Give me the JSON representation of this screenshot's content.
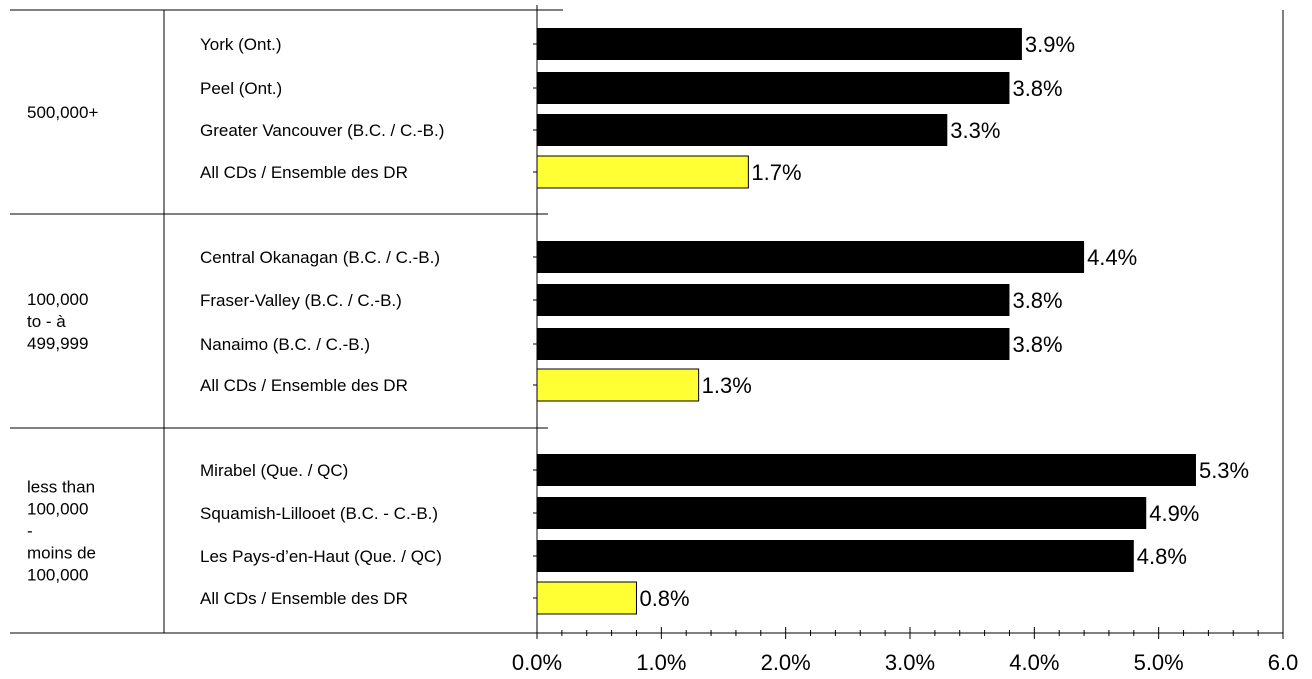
{
  "chart_data": {
    "type": "bar",
    "orientation": "horizontal",
    "xlim": [
      0,
      6
    ],
    "x_ticks": [
      "0.0%",
      "1.0%",
      "2.0%",
      "3.0%",
      "4.0%",
      "5.0%",
      "6.0"
    ],
    "value_unit": "%",
    "groups": [
      {
        "label": [
          "500,000+"
        ],
        "items": [
          {
            "name": "York (Ont.)",
            "value": 3.9,
            "value_label": "3.9%",
            "highlight": false
          },
          {
            "name": "Peel (Ont.)",
            "value": 3.8,
            "value_label": "3.8%",
            "highlight": false
          },
          {
            "name": "Greater Vancouver (B.C. / C.-B.)",
            "value": 3.3,
            "value_label": "3.3%",
            "highlight": false
          },
          {
            "name": "All CDs / Ensemble des DR",
            "value": 1.7,
            "value_label": "1.7%",
            "highlight": true
          }
        ]
      },
      {
        "label": [
          "100,000",
          "to - à",
          "499,999"
        ],
        "items": [
          {
            "name": "Central Okanagan (B.C. / C.-B.)",
            "value": 4.4,
            "value_label": "4.4%",
            "highlight": false
          },
          {
            "name": "Fraser-Valley (B.C. / C.-B.)",
            "value": 3.8,
            "value_label": "3.8%",
            "highlight": false
          },
          {
            "name": "Nanaimo (B.C. / C.-B.)",
            "value": 3.8,
            "value_label": "3.8%",
            "highlight": false
          },
          {
            "name": "All CDs / Ensemble des DR",
            "value": 1.3,
            "value_label": "1.3%",
            "highlight": true
          }
        ]
      },
      {
        "label": [
          "less than",
          "100,000",
          "-",
          "moins de",
          "100,000"
        ],
        "items": [
          {
            "name": "Mirabel (Que. / QC)",
            "value": 5.3,
            "value_label": "5.3%",
            "highlight": false
          },
          {
            "name": "Squamish-Lillooet (B.C. - C.-B.)",
            "value": 4.9,
            "value_label": "4.9%",
            "highlight": false
          },
          {
            "name": "Les Pays-d’en-Haut (Que. / QC)",
            "value": 4.8,
            "value_label": "4.8%",
            "highlight": false
          },
          {
            "name": "All CDs / Ensemble des DR",
            "value": 0.8,
            "value_label": "0.8%",
            "highlight": true
          }
        ]
      }
    ],
    "colors": {
      "bar": "#000000",
      "highlight": "#ffff33",
      "highlight_stroke": "#000000"
    },
    "grid": false,
    "legend": "none"
  }
}
